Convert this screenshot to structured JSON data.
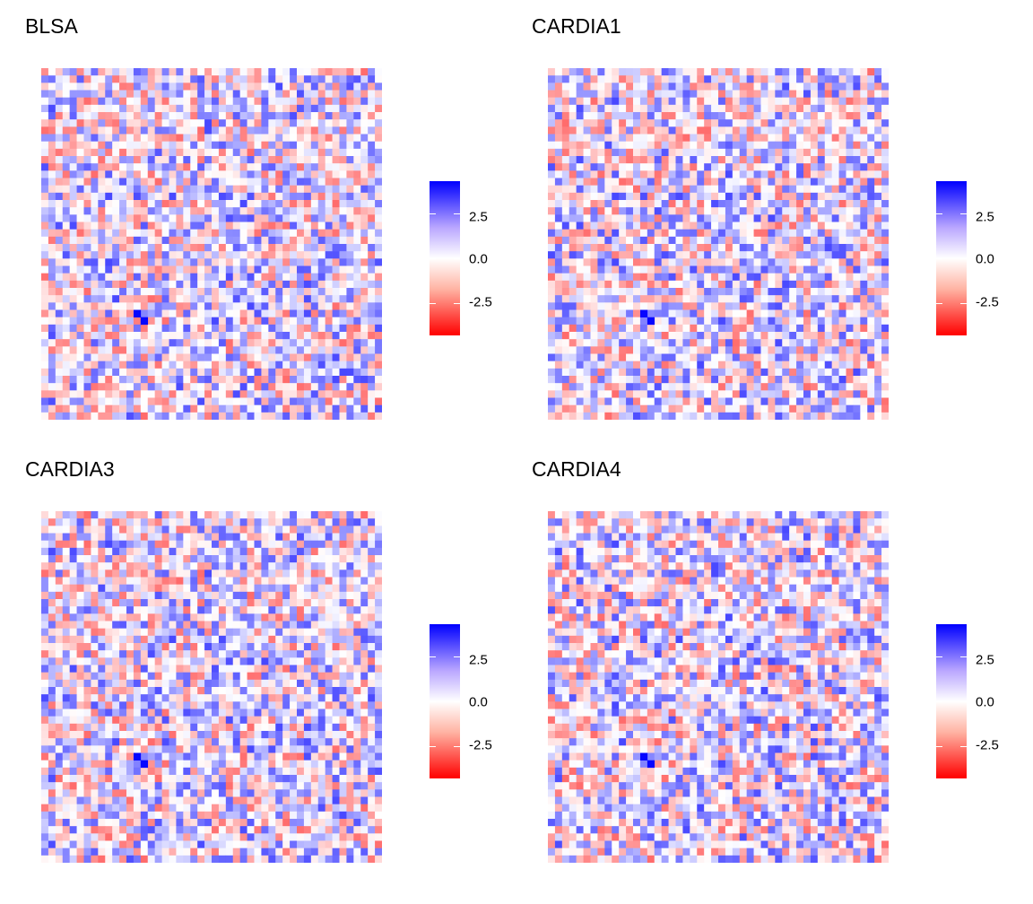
{
  "chart_data": [
    {
      "type": "heatmap",
      "title": "BLSA",
      "grid_size": 48,
      "seed": 7,
      "legend": {
        "position": "right",
        "ticks": [
          2.5,
          0.0,
          -2.5
        ],
        "tick_labels": [
          "2.5",
          "0.0",
          "-2.5"
        ],
        "limits": [
          -4.3,
          4.3
        ]
      },
      "colors": {
        "low": "#FF0000",
        "mid": "#FFFFFF",
        "high": "#0000FF"
      },
      "highlights": [
        {
          "row": 33,
          "col": 13,
          "value": 4.2
        },
        {
          "row": 34,
          "col": 14,
          "value": 4.2
        }
      ],
      "xlabel": "",
      "ylabel": "",
      "grid": false
    },
    {
      "type": "heatmap",
      "title": "CARDIA1",
      "grid_size": 48,
      "seed": 11,
      "legend": {
        "position": "right",
        "ticks": [
          2.5,
          0.0,
          -2.5
        ],
        "tick_labels": [
          "2.5",
          "0.0",
          "-2.5"
        ],
        "limits": [
          -4.3,
          4.3
        ]
      },
      "colors": {
        "low": "#FF0000",
        "mid": "#FFFFFF",
        "high": "#0000FF"
      },
      "highlights": [
        {
          "row": 33,
          "col": 13,
          "value": 4.2
        },
        {
          "row": 34,
          "col": 14,
          "value": 4.2
        }
      ],
      "xlabel": "",
      "ylabel": "",
      "grid": false
    },
    {
      "type": "heatmap",
      "title": "CARDIA3",
      "grid_size": 48,
      "seed": 19,
      "legend": {
        "position": "right",
        "ticks": [
          2.5,
          0.0,
          -2.5
        ],
        "tick_labels": [
          "2.5",
          "0.0",
          "-2.5"
        ],
        "limits": [
          -4.3,
          4.3
        ]
      },
      "colors": {
        "low": "#FF0000",
        "mid": "#FFFFFF",
        "high": "#0000FF"
      },
      "highlights": [
        {
          "row": 33,
          "col": 13,
          "value": 4.2
        },
        {
          "row": 34,
          "col": 14,
          "value": 4.2
        }
      ],
      "xlabel": "",
      "ylabel": "",
      "grid": false
    },
    {
      "type": "heatmap",
      "title": "CARDIA4",
      "grid_size": 48,
      "seed": 23,
      "legend": {
        "position": "right",
        "ticks": [
          2.5,
          0.0,
          -2.5
        ],
        "tick_labels": [
          "2.5",
          "0.0",
          "-2.5"
        ],
        "limits": [
          -4.3,
          4.3
        ]
      },
      "colors": {
        "low": "#FF0000",
        "mid": "#FFFFFF",
        "high": "#0000FF"
      },
      "highlights": [
        {
          "row": 33,
          "col": 13,
          "value": 4.2
        },
        {
          "row": 34,
          "col": 14,
          "value": 4.2
        }
      ],
      "xlabel": "",
      "ylabel": "",
      "grid": false
    }
  ]
}
